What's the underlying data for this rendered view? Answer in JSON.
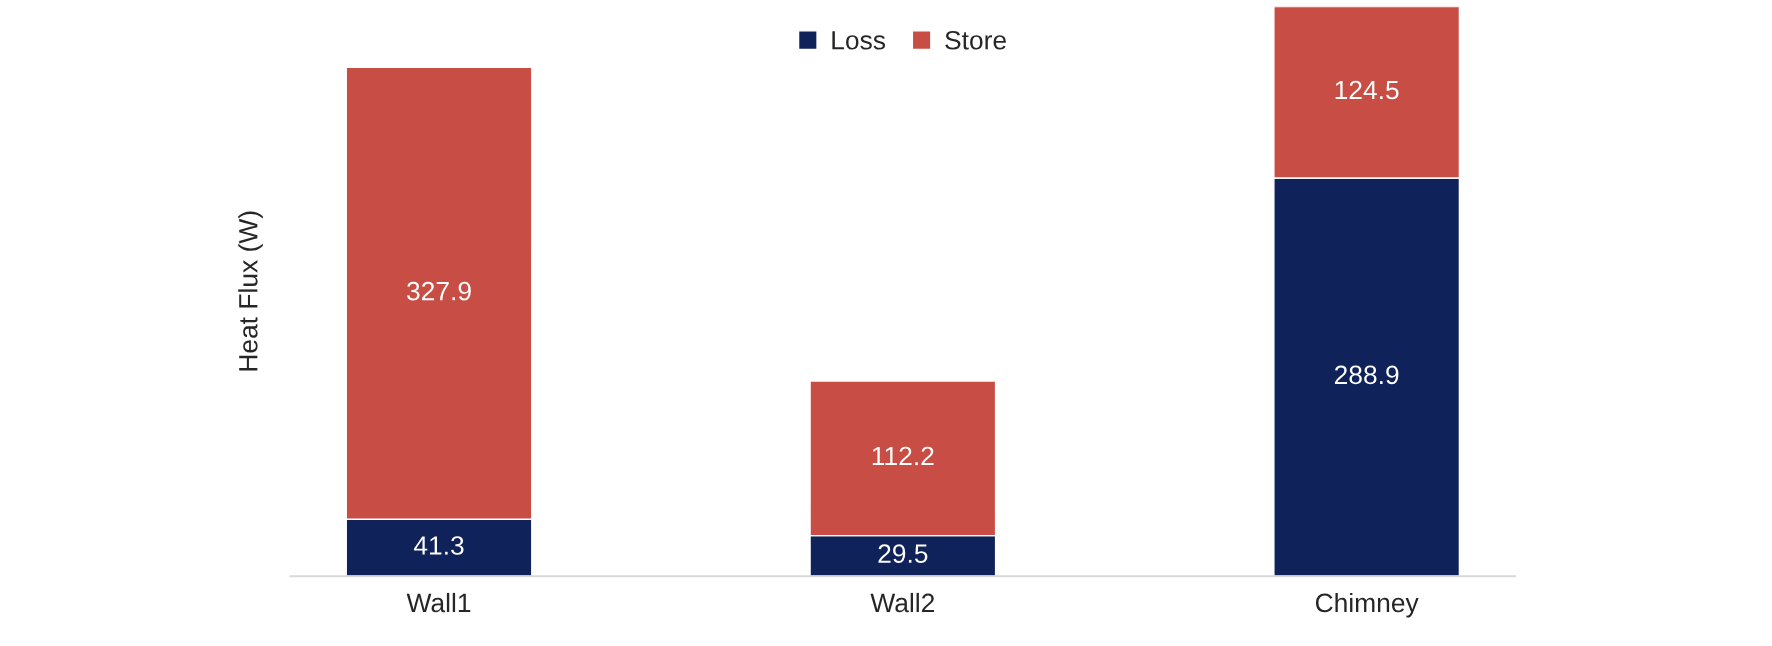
{
  "chart_data": {
    "type": "bar",
    "stacked": true,
    "ylabel": "Heat Flux (W)",
    "categories": [
      "Wall1",
      "Wall2",
      "Chimney"
    ],
    "series": [
      {
        "name": "Loss",
        "color": "#0f2259",
        "values": [
          41.3,
          29.5,
          288.9
        ]
      },
      {
        "name": "Store",
        "color": "#c84e45",
        "values": [
          327.9,
          112.2,
          124.5
        ]
      }
    ],
    "data_labels": true,
    "legend": "top",
    "grid": false
  }
}
